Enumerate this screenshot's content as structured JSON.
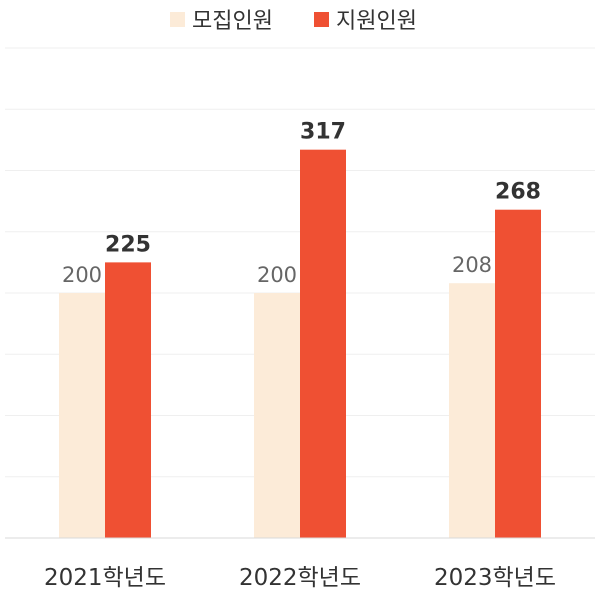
{
  "chart_data": {
    "type": "bar",
    "categories": [
      "2021학년도",
      "2022학년도",
      "2023학년도"
    ],
    "series": [
      {
        "name": "모집인원",
        "values": [
          200,
          200,
          208
        ],
        "color": "#fcebd8"
      },
      {
        "name": "지원인원",
        "values": [
          225,
          317,
          268
        ],
        "color": "#ef5033"
      }
    ],
    "ylim": [
      0,
      400
    ],
    "grid": true,
    "legend": "top-center",
    "xlabel": "",
    "ylabel": ""
  }
}
